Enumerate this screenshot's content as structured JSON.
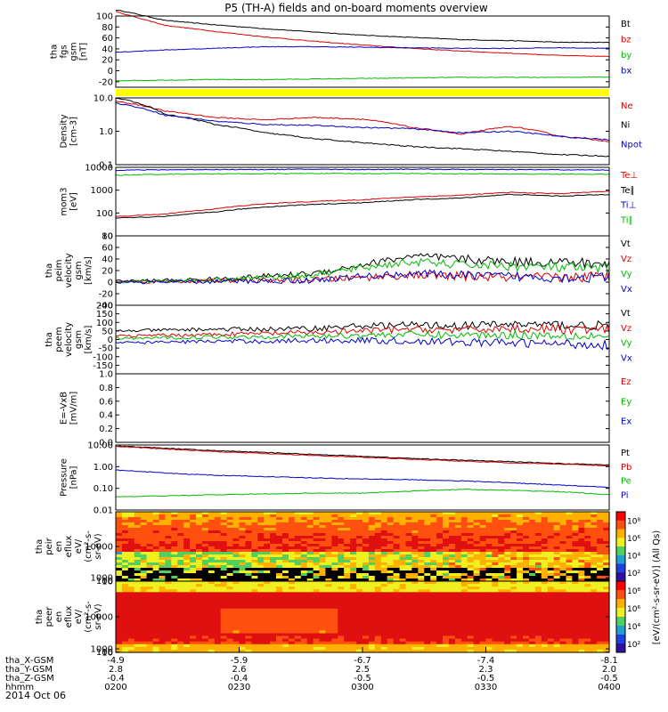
{
  "title": "P5 (TH-A) fields and on-board moments overview",
  "date_label": "2014 Oct 06",
  "colorbar_label": "[eV/(cm²-s-sr-eV)] (All Qs)",
  "chart_data": [
    {
      "id": "fgs",
      "type": "line",
      "ylabel_lines": [
        "tha",
        "fgs",
        "gsm",
        "[nT]"
      ],
      "ylim": [
        -30,
        100
      ],
      "ticks": [
        "100",
        "80",
        "60",
        "40",
        "20",
        "0",
        "-20"
      ],
      "tick_values": [
        100,
        80,
        60,
        40,
        20,
        0,
        -20
      ],
      "x": [
        0,
        0.1,
        0.2,
        0.3,
        0.4,
        0.5,
        0.6,
        0.7,
        0.8,
        0.9,
        1.0
      ],
      "series": [
        {
          "name": "Bt",
          "color": "#000000",
          "values": [
            112,
            92,
            84,
            77,
            71,
            65,
            61,
            57,
            55,
            52,
            52
          ]
        },
        {
          "name": "bz",
          "color": "#dd0000",
          "values": [
            108,
            83,
            72,
            62,
            54,
            47,
            41,
            36,
            32,
            28,
            26
          ]
        },
        {
          "name": "by",
          "color": "#00bb00",
          "values": [
            -18,
            -17,
            -16,
            -16,
            -15,
            -14,
            -13,
            -12,
            -12,
            -12,
            -11
          ]
        },
        {
          "name": "bx",
          "color": "#0000cc",
          "values": [
            34,
            38,
            41,
            44,
            44,
            43,
            42,
            41,
            41,
            42,
            41
          ]
        }
      ]
    },
    {
      "id": "density",
      "type": "line",
      "log": true,
      "ylabel_lines": [
        "Density",
        "[cm-3]"
      ],
      "ylim": [
        0.1,
        10
      ],
      "ticks": [
        "10.0",
        "1.0",
        "0.1"
      ],
      "tick_values": [
        10,
        1,
        0.1
      ],
      "x": [
        0,
        0.1,
        0.2,
        0.3,
        0.4,
        0.5,
        0.6,
        0.7,
        0.8,
        0.9,
        1.0
      ],
      "series": [
        {
          "name": "Ne",
          "color": "#dd0000",
          "values": [
            8,
            4,
            2.6,
            2.2,
            2.6,
            2.3,
            1.3,
            0.8,
            1.4,
            0.7,
            0.5
          ]
        },
        {
          "name": "Ni",
          "color": "#000000",
          "values": [
            10,
            3.2,
            1.6,
            0.9,
            0.6,
            0.45,
            0.35,
            0.3,
            0.25,
            0.2,
            0.18
          ]
        },
        {
          "name": "Npot",
          "color": "#0000cc",
          "values": [
            7,
            3.0,
            2.0,
            1.6,
            1.5,
            1.3,
            1.2,
            0.9,
            1.0,
            0.7,
            0.55
          ]
        }
      ]
    },
    {
      "id": "temperature",
      "type": "line",
      "log": true,
      "ylabel_lines": [
        "mom3",
        "[eV]"
      ],
      "ylim": [
        10,
        10000
      ],
      "ticks": [
        "10000",
        "1000",
        "100",
        "10"
      ],
      "tick_values": [
        10000,
        1000,
        100,
        10
      ],
      "x": [
        0,
        0.1,
        0.2,
        0.3,
        0.4,
        0.5,
        0.6,
        0.7,
        0.8,
        0.9,
        1.0
      ],
      "series": [
        {
          "name": "Te⊥",
          "color": "#dd0000",
          "values": [
            70,
            90,
            150,
            250,
            320,
            380,
            500,
            600,
            800,
            700,
            900
          ]
        },
        {
          "name": "Te∥",
          "color": "#000000",
          "values": [
            60,
            70,
            110,
            180,
            240,
            280,
            380,
            450,
            650,
            550,
            650
          ]
        },
        {
          "name": "Ti⊥",
          "color": "#0000cc",
          "values": [
            7500,
            7800,
            8000,
            8000,
            8200,
            8000,
            8300,
            8000,
            7900,
            7800,
            7600
          ]
        },
        {
          "name": "Ti∥",
          "color": "#00bb00",
          "values": [
            4500,
            5000,
            5200,
            5200,
            5400,
            5300,
            5400,
            5200,
            5100,
            5000,
            5000
          ]
        }
      ]
    },
    {
      "id": "peim",
      "type": "line",
      "ylabel_lines": [
        "tha",
        "peim",
        "velocity",
        "gsm",
        "[km/s]"
      ],
      "ylim": [
        -40,
        80
      ],
      "ticks": [
        "80",
        "60",
        "40",
        "20",
        "0",
        "-20",
        "-40"
      ],
      "tick_values": [
        80,
        60,
        40,
        20,
        0,
        -20,
        -40
      ],
      "x": [
        0,
        0.1,
        0.2,
        0.3,
        0.4,
        0.5,
        0.6,
        0.7,
        0.8,
        0.9,
        1.0
      ],
      "series": [
        {
          "name": "Vt",
          "color": "#000000",
          "values": [
            2,
            3,
            5,
            10,
            15,
            30,
            45,
            40,
            35,
            35,
            30
          ]
        },
        {
          "name": "Vz",
          "color": "#dd0000",
          "values": [
            1,
            1,
            2,
            3,
            4,
            8,
            12,
            10,
            8,
            8,
            10
          ]
        },
        {
          "name": "Vy",
          "color": "#00bb00",
          "values": [
            1,
            2,
            4,
            8,
            12,
            25,
            35,
            30,
            28,
            25,
            22
          ]
        },
        {
          "name": "Vx",
          "color": "#0000cc",
          "values": [
            0,
            0,
            1,
            2,
            3,
            10,
            15,
            12,
            10,
            8,
            8
          ]
        }
      ]
    },
    {
      "id": "peem",
      "type": "line",
      "ylabel_lines": [
        "tha",
        "peem",
        "velocity",
        "gsm",
        "[km/s]"
      ],
      "ylim": [
        -200,
        200
      ],
      "ticks": [
        "200",
        "150",
        "100",
        "50",
        "0",
        "-50",
        "-100",
        "-150"
      ],
      "tick_values": [
        200,
        150,
        100,
        50,
        0,
        -50,
        -100,
        -150
      ],
      "x": [
        0,
        0.1,
        0.2,
        0.3,
        0.4,
        0.5,
        0.6,
        0.7,
        0.8,
        0.9,
        1.0
      ],
      "series": [
        {
          "name": "Vt",
          "color": "#000000",
          "values": [
            50,
            55,
            60,
            60,
            65,
            80,
            85,
            80,
            90,
            85,
            80
          ]
        },
        {
          "name": "Vz",
          "color": "#dd0000",
          "values": [
            20,
            25,
            30,
            35,
            40,
            50,
            60,
            55,
            65,
            60,
            55
          ]
        },
        {
          "name": "Vy",
          "color": "#00bb00",
          "values": [
            5,
            10,
            15,
            18,
            20,
            25,
            30,
            25,
            28,
            25,
            20
          ]
        },
        {
          "name": "Vx",
          "color": "#0000cc",
          "values": [
            -20,
            -15,
            -10,
            -10,
            -5,
            -5,
            -10,
            -15,
            -20,
            -25,
            -30
          ]
        }
      ]
    },
    {
      "id": "efield",
      "type": "line",
      "ylabel_lines": [
        "E=-VxB",
        "[mV/m]"
      ],
      "ylim": [
        0,
        1
      ],
      "ticks": [
        "1.0",
        "0.8",
        "0.6",
        "0.4",
        "0.2",
        "0.0"
      ],
      "tick_values": [
        1,
        0.8,
        0.6,
        0.4,
        0.2,
        0
      ],
      "series": [
        {
          "name": "Ez",
          "color": "#dd0000",
          "values": []
        },
        {
          "name": "Ey",
          "color": "#00bb00",
          "values": []
        },
        {
          "name": "Ex",
          "color": "#0000cc",
          "values": []
        }
      ]
    },
    {
      "id": "pressure",
      "type": "line",
      "log": true,
      "ylabel_lines": [
        "Pressure",
        "[nPa]"
      ],
      "ylim": [
        0.01,
        10
      ],
      "ticks": [
        "10.00",
        "1.00",
        "0.10",
        "0.01"
      ],
      "tick_values": [
        10,
        1,
        0.1,
        0.01
      ],
      "x": [
        0,
        0.1,
        0.2,
        0.3,
        0.4,
        0.5,
        0.6,
        0.7,
        0.8,
        0.9,
        1.0
      ],
      "series": [
        {
          "name": "Pt",
          "color": "#000000",
          "values": [
            9,
            7,
            5.5,
            4.5,
            3.7,
            3.0,
            2.4,
            2.0,
            1.7,
            1.4,
            1.2
          ]
        },
        {
          "name": "Pb",
          "color": "#dd0000",
          "values": [
            8.5,
            6.5,
            5.0,
            4.0,
            3.3,
            2.7,
            2.2,
            1.8,
            1.5,
            1.3,
            1.1
          ]
        },
        {
          "name": "Pe",
          "color": "#00bb00",
          "values": [
            0.04,
            0.045,
            0.05,
            0.055,
            0.06,
            0.06,
            0.075,
            0.09,
            0.08,
            0.07,
            0.05
          ]
        },
        {
          "name": "Pi",
          "color": "#0000cc",
          "values": [
            0.7,
            0.5,
            0.4,
            0.35,
            0.3,
            0.27,
            0.25,
            0.22,
            0.18,
            0.14,
            0.11
          ]
        }
      ]
    },
    {
      "id": "peir_spec",
      "type": "heatmap",
      "ylabel_lines": [
        "tha",
        "peir",
        "en",
        "eflux",
        "eV/",
        "(cm²-s-",
        "sr-eV)"
      ],
      "ylim": [
        10,
        20000
      ],
      "ticks": [
        "10000",
        "1000",
        "100",
        "10"
      ],
      "tick_values": [
        10000,
        1000,
        100,
        10
      ]
    },
    {
      "id": "peer_spec",
      "type": "heatmap",
      "ylabel_lines": [
        "tha",
        "peer",
        "en",
        "eflux",
        "eV/",
        "(cm²-s-",
        "sr-eV)"
      ],
      "ylim": [
        10,
        20000
      ],
      "ticks": [
        "10000",
        "1000",
        "100",
        "10"
      ],
      "tick_values": [
        10000,
        1000,
        100,
        10
      ]
    }
  ],
  "colorbar": {
    "ticks": [
      "10⁸",
      "10⁶",
      "10⁴",
      "10²"
    ],
    "tick_values": [
      8,
      6,
      4,
      2
    ]
  },
  "x_axis": {
    "tick_labels": [
      "0200",
      "0230",
      "0300",
      "0330",
      "0400"
    ],
    "rows": [
      {
        "label": "tha_X-GSM",
        "values": [
          "-4.9",
          "-5.9",
          "-6.7",
          "-7.4",
          "-8.1"
        ]
      },
      {
        "label": "tha_Y-GSM",
        "values": [
          "2.8",
          "2.6",
          "2.5",
          "2.3",
          "2.0"
        ]
      },
      {
        "label": "tha_Z-GSM",
        "values": [
          "-0.4",
          "-0.4",
          "-0.5",
          "-0.5",
          "-0.5"
        ]
      },
      {
        "label": "hhmm",
        "values": [
          "0200",
          "0230",
          "0300",
          "0330",
          "0400"
        ]
      }
    ]
  },
  "colors": {
    "black": "#000000",
    "red": "#dd0000",
    "green": "#00bb00",
    "blue": "#0000cc",
    "yellow_bar": "#ffff00"
  }
}
